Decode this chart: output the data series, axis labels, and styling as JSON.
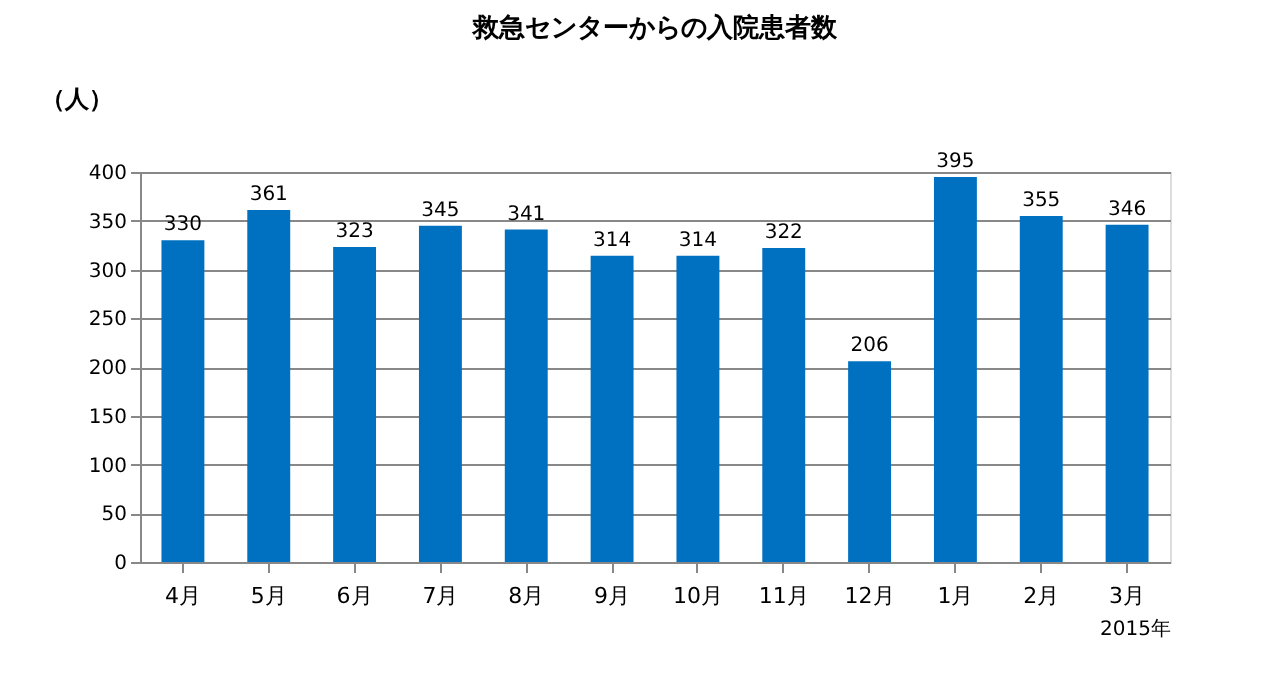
{
  "chart_data": {
    "type": "bar",
    "title": "救急センターからの入院患者数",
    "ylabel": "（人）",
    "xlabel": "2015年",
    "categories": [
      "4月",
      "5月",
      "6月",
      "7月",
      "8月",
      "9月",
      "10月",
      "11月",
      "12月",
      "1月",
      "2月",
      "3月"
    ],
    "values": [
      330,
      361,
      323,
      345,
      341,
      314,
      314,
      322,
      206,
      395,
      355,
      346
    ],
    "color": "#0070c0",
    "ylim": [
      0,
      400
    ],
    "yticks": [
      0,
      50,
      100,
      150,
      200,
      250,
      300,
      350,
      400
    ],
    "grid": "y",
    "data_labels": true
  }
}
